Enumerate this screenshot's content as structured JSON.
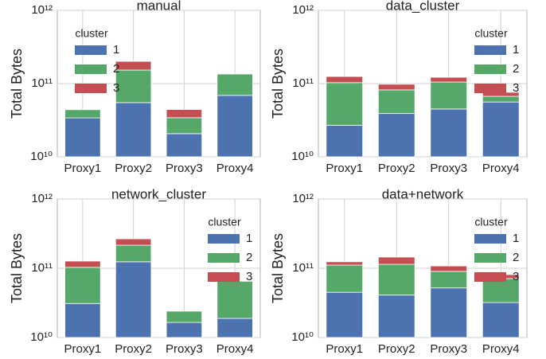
{
  "chart_data": [
    {
      "type": "stacked_bar",
      "title": "manual",
      "y_label": "Total Bytes",
      "log_scale": true,
      "grid": true,
      "categories": [
        "Proxy1",
        "Proxy2",
        "Proxy3",
        "Proxy4"
      ],
      "series": [
        {
          "name": "1",
          "color": "#4c72b0",
          "values": [
            34000000000,
            55000000000,
            20700000000,
            69000000000
          ]
        },
        {
          "name": "2",
          "color": "#55a868",
          "values": [
            10000000000,
            98000000000,
            13500000000,
            66000000000
          ]
        },
        {
          "name": "3",
          "color": "#c44e52",
          "values": [
            0,
            48000000000,
            10000000000,
            0
          ]
        }
      ],
      "legend_title": "cluster",
      "legend_position": "upper left",
      "ylim": [
        10000000000,
        1000000000000
      ],
      "yticks": [
        {
          "value": 10000000000,
          "label": "10¹⁰"
        },
        {
          "value": 100000000000,
          "label": "10¹¹"
        },
        {
          "value": 1000000000000,
          "label": "10¹²"
        }
      ]
    },
    {
      "type": "stacked_bar",
      "title": "data_cluster",
      "y_label": "Total Bytes",
      "log_scale": true,
      "grid": true,
      "categories": [
        "Proxy1",
        "Proxy2",
        "Proxy3",
        "Proxy4"
      ],
      "series": [
        {
          "name": "1",
          "color": "#4c72b0",
          "values": [
            27000000000,
            39000000000,
            45000000000,
            56000000000
          ]
        },
        {
          "name": "2",
          "color": "#55a868",
          "values": [
            76000000000,
            43000000000,
            60000000000,
            11000000000
          ]
        },
        {
          "name": "3",
          "color": "#c44e52",
          "values": [
            22000000000,
            16000000000,
            17000000000,
            9000000000
          ]
        }
      ],
      "legend_title": "cluster",
      "legend_position": "upper right",
      "ylim": [
        10000000000,
        1000000000000
      ],
      "yticks": [
        {
          "value": 10000000000,
          "label": "10¹⁰"
        },
        {
          "value": 100000000000,
          "label": "10¹¹"
        },
        {
          "value": 1000000000000,
          "label": "10¹²"
        }
      ]
    },
    {
      "type": "stacked_bar",
      "title": "network_cluster",
      "y_label": "Total Bytes",
      "log_scale": true,
      "grid": true,
      "categories": [
        "Proxy1",
        "Proxy2",
        "Proxy3",
        "Proxy4"
      ],
      "series": [
        {
          "name": "1",
          "color": "#4c72b0",
          "values": [
            31000000000,
            124000000000,
            16500000000,
            18900000000
          ]
        },
        {
          "name": "2",
          "color": "#55a868",
          "values": [
            72000000000,
            91000000000,
            7500000000,
            46000000000
          ]
        },
        {
          "name": "3",
          "color": "#c44e52",
          "values": [
            24000000000,
            51000000000,
            0,
            0
          ]
        }
      ],
      "legend_title": "cluster",
      "legend_position": "upper right",
      "ylim": [
        10000000000,
        1000000000000
      ],
      "yticks": [
        {
          "value": 10000000000,
          "label": "10¹⁰"
        },
        {
          "value": 100000000000,
          "label": "10¹¹"
        },
        {
          "value": 1000000000000,
          "label": "10¹²"
        }
      ]
    },
    {
      "type": "stacked_bar",
      "title": "data+network",
      "y_label": "Total Bytes",
      "log_scale": true,
      "grid": true,
      "categories": [
        "Proxy1",
        "Proxy2",
        "Proxy3",
        "Proxy4"
      ],
      "series": [
        {
          "name": "1",
          "color": "#4c72b0",
          "values": [
            45000000000,
            41000000000,
            52000000000,
            32000000000
          ]
        },
        {
          "name": "2",
          "color": "#55a868",
          "values": [
            66000000000,
            73000000000,
            38000000000,
            39000000000
          ]
        },
        {
          "name": "3",
          "color": "#c44e52",
          "values": [
            13000000000,
            31000000000,
            18000000000,
            10000000000
          ]
        }
      ],
      "legend_title": "cluster",
      "legend_position": "upper right",
      "ylim": [
        10000000000,
        1000000000000
      ],
      "yticks": [
        {
          "value": 10000000000,
          "label": "10¹⁰"
        },
        {
          "value": 100000000000,
          "label": "10¹¹"
        },
        {
          "value": 1000000000000,
          "label": "10¹²"
        }
      ]
    }
  ]
}
